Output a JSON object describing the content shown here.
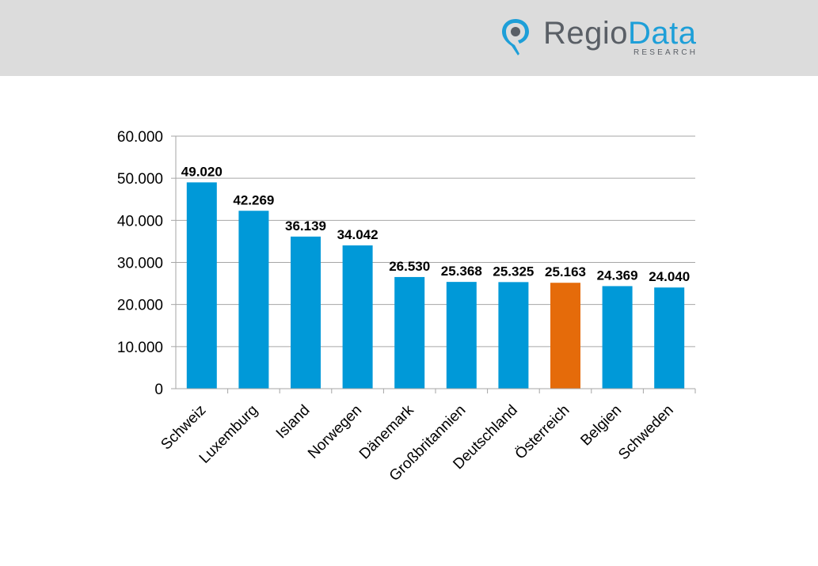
{
  "logo": {
    "brand_part1": "Regio",
    "brand_part2": "Data",
    "subtitle": "RESEARCH",
    "icon": "map-pin-icon"
  },
  "colors": {
    "header_bg": "#dcdcdc",
    "bar": "#0099d8",
    "highlight": "#e56b0a",
    "gridline": "#a6a6a6",
    "logo_gray": "#5a5f66",
    "logo_blue": "#1e9fd8"
  },
  "chart_data": {
    "type": "bar",
    "categories": [
      "Schweiz",
      "Luxemburg",
      "Island",
      "Norwegen",
      "Dänemark",
      "Großbritannien",
      "Deutschland",
      "Österreich",
      "Belgien",
      "Schweden"
    ],
    "values": [
      49020,
      42269,
      36139,
      34042,
      26530,
      25368,
      25325,
      25163,
      24369,
      24040
    ],
    "data_labels": [
      "49.020",
      "42.269",
      "36.139",
      "34.042",
      "26.530",
      "25.368",
      "25.325",
      "25.163",
      "24.369",
      "24.040"
    ],
    "highlight_category": "Österreich",
    "yticks": [
      0,
      10000,
      20000,
      30000,
      40000,
      50000,
      60000
    ],
    "ytick_labels": [
      "0",
      "10.000",
      "20.000",
      "30.000",
      "40.000",
      "50.000",
      "60.000"
    ],
    "ylim": [
      0,
      60000
    ],
    "grid": true,
    "legend": "none",
    "title": "",
    "xlabel": "",
    "ylabel": ""
  }
}
